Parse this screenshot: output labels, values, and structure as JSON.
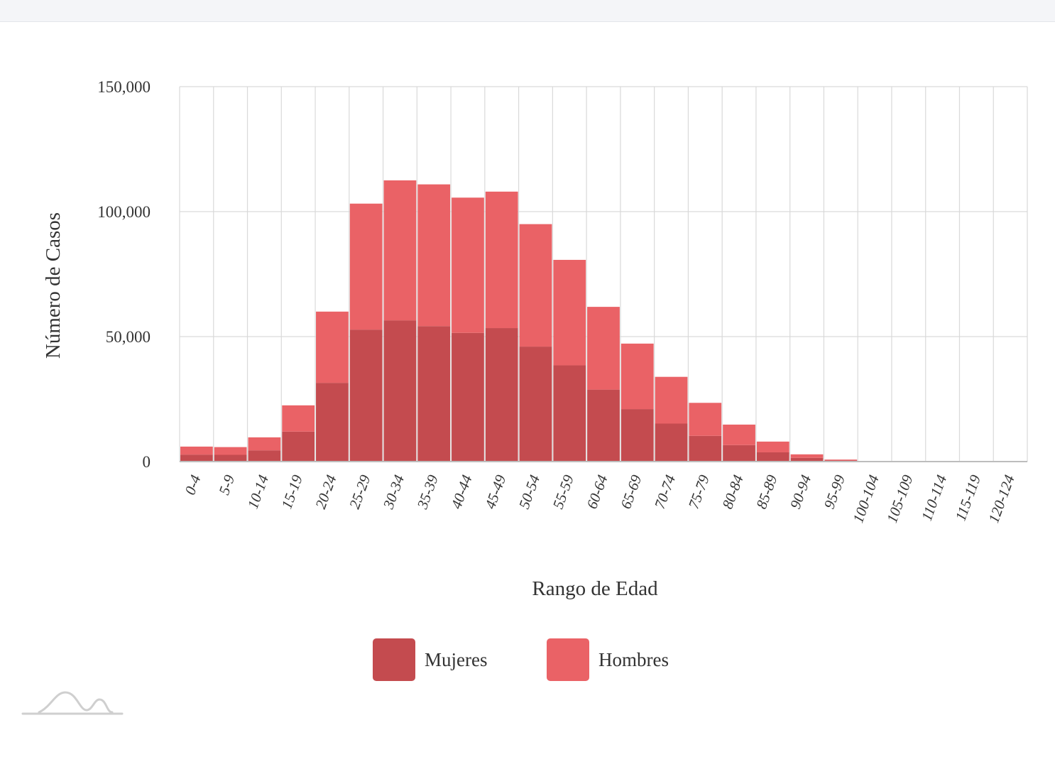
{
  "chart_data": {
    "type": "bar",
    "stacked": true,
    "categories": [
      "0-4",
      "5-9",
      "10-14",
      "15-19",
      "20-24",
      "25-29",
      "30-34",
      "35-39",
      "40-44",
      "45-49",
      "50-54",
      "55-59",
      "60-64",
      "65-69",
      "70-74",
      "75-79",
      "80-84",
      "85-89",
      "90-94",
      "95-99",
      "100-104",
      "105-109",
      "110-114",
      "115-119",
      "120-124"
    ],
    "series": [
      {
        "name": "Mujeres",
        "color": "#c44b4f",
        "values": [
          2800,
          2700,
          4500,
          12000,
          31500,
          52800,
          56500,
          54200,
          51500,
          53400,
          46000,
          38500,
          28800,
          21000,
          15200,
          10300,
          6600,
          3700,
          1500,
          450,
          80,
          15,
          5,
          2,
          1
        ]
      },
      {
        "name": "Hombres",
        "color": "#ea6266",
        "values": [
          3200,
          3100,
          5200,
          10500,
          28500,
          50400,
          56000,
          56700,
          54100,
          54600,
          49000,
          42200,
          33100,
          26200,
          18700,
          13200,
          8200,
          4300,
          1400,
          350,
          60,
          10,
          3,
          1,
          1
        ]
      }
    ],
    "xlabel": "Rango de Edad",
    "ylabel": "Número de Casos",
    "ylim": [
      0,
      150000
    ],
    "yticks": [
      0,
      50000,
      100000,
      150000
    ],
    "ytick_labels": [
      "0",
      "50,000",
      "100,000",
      "150,000"
    ],
    "grid": true,
    "legend": "bottom-center"
  },
  "watermark": {
    "icon": "mountain-logo-icon"
  }
}
